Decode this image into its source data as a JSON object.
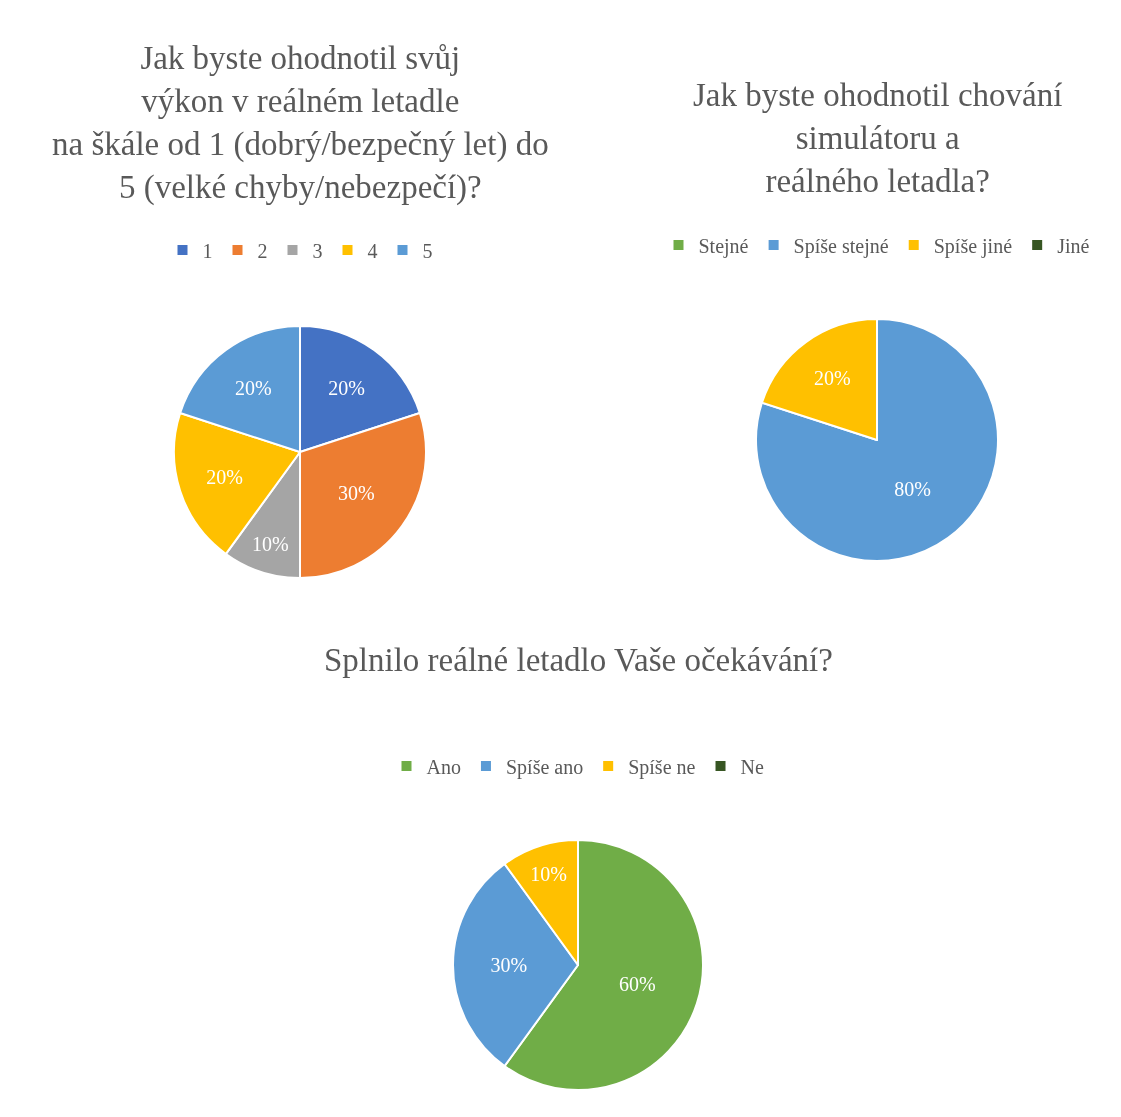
{
  "chart_data": [
    {
      "type": "pie",
      "title": "Jak byste ohodnotil svůj výkon v reálném letadle na škále od 1 (dobrý/bezpečný let) do 5 (velké chyby/nebezpečí)?",
      "categories": [
        "1",
        "2",
        "3",
        "4",
        "5"
      ],
      "values": [
        20,
        30,
        10,
        20,
        20
      ],
      "colors": [
        "#4472c4",
        "#ed7d31",
        "#a5a5a5",
        "#ffc000",
        "#5b9bd5"
      ],
      "value_labels": [
        "20%",
        "30%",
        "10%",
        "20%",
        "20%"
      ],
      "legend": "top"
    },
    {
      "type": "pie",
      "title": "Jak byste ohodnotil chování simulátoru a reálného letadla?",
      "categories": [
        "Stejné",
        "Spíše stejné",
        "Spíše jiné",
        "Jiné"
      ],
      "values": [
        0,
        80,
        20,
        0
      ],
      "colors": [
        "#70ad47",
        "#5b9bd5",
        "#ffc000",
        "#375623"
      ],
      "value_labels": [
        null,
        "80%",
        "20%",
        null
      ],
      "legend": "top"
    },
    {
      "type": "pie",
      "title": "Splnilo reálné letadlo Vaše očekávání?",
      "categories": [
        "Ano",
        "Spíše ano",
        "Spíše ne",
        "Ne"
      ],
      "values": [
        60,
        30,
        10,
        0
      ],
      "colors": [
        "#70ad47",
        "#5b9bd5",
        "#ffc000",
        "#375623"
      ],
      "value_labels": [
        "60%",
        "30%",
        "10%",
        null
      ],
      "legend": "top"
    }
  ]
}
